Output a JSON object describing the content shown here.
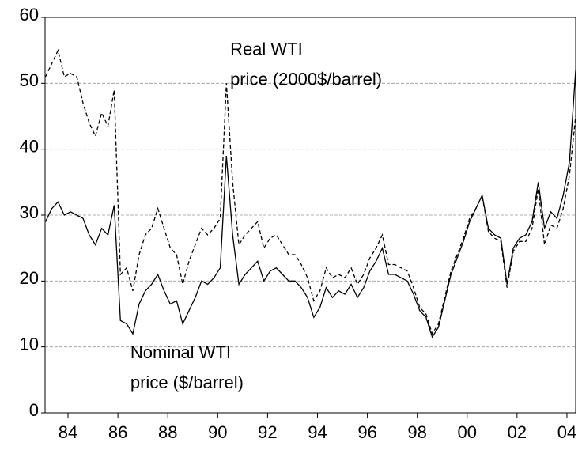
{
  "chart_data": {
    "type": "line",
    "annotations": [
      {
        "lines": [
          "Real WTI",
          "price (2000$/barrel)"
        ],
        "x": 1990.5,
        "y": 55
      },
      {
        "lines": [
          "Nominal WTI",
          "price ($/barrel)"
        ],
        "x": 1986.5,
        "y": 9
      }
    ],
    "x": [
      1983.1,
      1983.35,
      1983.6,
      1983.85,
      1984.1,
      1984.35,
      1984.6,
      1984.85,
      1985.1,
      1985.35,
      1985.6,
      1985.85,
      1986.1,
      1986.35,
      1986.6,
      1986.85,
      1987.1,
      1987.35,
      1987.6,
      1987.85,
      1988.1,
      1988.35,
      1988.6,
      1988.85,
      1989.1,
      1989.35,
      1989.6,
      1989.85,
      1990.1,
      1990.35,
      1990.6,
      1990.85,
      1991.1,
      1991.35,
      1991.6,
      1991.85,
      1992.1,
      1992.35,
      1992.6,
      1992.85,
      1993.1,
      1993.35,
      1993.6,
      1993.85,
      1994.1,
      1994.35,
      1994.6,
      1994.85,
      1995.1,
      1995.35,
      1995.6,
      1995.85,
      1996.1,
      1996.35,
      1996.6,
      1996.85,
      1997.1,
      1997.35,
      1997.6,
      1997.85,
      1998.1,
      1998.35,
      1998.6,
      1998.85,
      1999.1,
      1999.35,
      1999.6,
      1999.85,
      2000.1,
      2000.35,
      2000.6,
      2000.85,
      2001.1,
      2001.35,
      2001.6,
      2001.85,
      2002.1,
      2002.35,
      2002.6,
      2002.85,
      2003.1,
      2003.35,
      2003.6,
      2003.85,
      2004.1,
      2004.35
    ],
    "series": [
      {
        "name": "Nominal WTI price ($/barrel)",
        "color": "#000000",
        "line_style": "solid",
        "values": [
          29,
          31,
          32,
          30,
          30.5,
          30,
          29.5,
          27,
          25.5,
          28,
          27,
          31.5,
          14,
          13.5,
          12,
          16.5,
          18.5,
          19.5,
          21,
          18.5,
          16.5,
          17,
          13.5,
          15.5,
          17.5,
          20,
          19.5,
          20.5,
          22,
          39,
          27,
          19.5,
          21,
          22,
          23,
          20,
          21.5,
          22,
          21,
          20,
          20,
          19,
          17.5,
          14.5,
          16,
          19,
          17.5,
          18.5,
          18,
          19.5,
          17.5,
          19,
          21.5,
          23,
          25,
          21,
          21,
          20.5,
          20,
          18,
          15.5,
          14.5,
          11.5,
          13,
          17,
          21,
          23.5,
          26,
          29,
          31,
          33,
          28,
          27,
          26.5,
          19.5,
          25,
          26.5,
          27,
          29,
          35,
          28,
          30.5,
          29.5,
          33,
          38,
          52
        ]
      },
      {
        "name": "Real WTI price (2000$/barrel)",
        "color": "#000000",
        "line_style": "dashed",
        "values": [
          51,
          53,
          55,
          51,
          51.5,
          51,
          47,
          44,
          42,
          45.5,
          43.5,
          49,
          21,
          22,
          18.5,
          24,
          27,
          28,
          31,
          28,
          25,
          24,
          19.5,
          23,
          25.5,
          28,
          27,
          28,
          29.5,
          50,
          35,
          25.5,
          27,
          28,
          29,
          25,
          26.5,
          27,
          25.5,
          24,
          24,
          22.5,
          20.5,
          17,
          18.5,
          22,
          20.5,
          21,
          20.5,
          22,
          19.5,
          21,
          23.5,
          25,
          27,
          22.5,
          22.5,
          22,
          21.5,
          19,
          16,
          15,
          12,
          13.5,
          17.5,
          21.5,
          24,
          26.5,
          29.5,
          31,
          33,
          27.5,
          26.5,
          26,
          19,
          24.5,
          26,
          26,
          28,
          34,
          25.5,
          28.5,
          28,
          31,
          36,
          45
        ]
      }
    ],
    "xlim": [
      1983.08,
      2004.35
    ],
    "xticks": [
      {
        "value": 1984,
        "label": "84"
      },
      {
        "value": 1986,
        "label": "86"
      },
      {
        "value": 1988,
        "label": "88"
      },
      {
        "value": 1990,
        "label": "90"
      },
      {
        "value": 1992,
        "label": "92"
      },
      {
        "value": 1994,
        "label": "94"
      },
      {
        "value": 1996,
        "label": "96"
      },
      {
        "value": 1998,
        "label": "98"
      },
      {
        "value": 2000,
        "label": "00"
      },
      {
        "value": 2002,
        "label": "02"
      },
      {
        "value": 2004,
        "label": "04"
      }
    ],
    "ylim": [
      0,
      60
    ],
    "yticks": [
      0,
      10,
      20,
      30,
      40,
      50,
      60
    ],
    "grid": true
  }
}
